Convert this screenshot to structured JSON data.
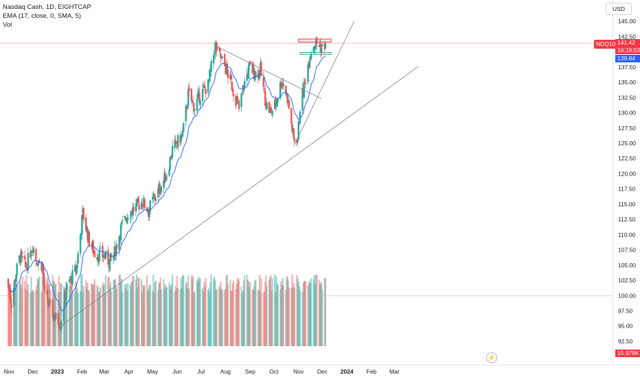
{
  "legend": {
    "symbol_line": "Nasdaq Cash, 1D, EIGHTCAP",
    "ema_line": "EMA (17, close, 0, SMA, 5)",
    "vol_line": "Vol"
  },
  "currency_label": "USD",
  "symbol_badge": "NDQ100",
  "last_price": "141.42",
  "countdown": "16:19:53",
  "second_price": "139.84",
  "volume_label": "15.978K",
  "colors": {
    "up": "#26a69a",
    "down": "#ef5350",
    "ema": "#2962ff",
    "trendline": "#787b86",
    "zone": "#f23645",
    "zone_fill": "#fde3e5",
    "green_zone": "#26a69a"
  },
  "chart_data": {
    "type": "candlestick",
    "title": "Nasdaq Cash, 1D, EIGHTCAP",
    "ylabel": "USD",
    "ylim": [
      90.5,
      146.5
    ],
    "y_ticks": [
      "145.00",
      "142.50",
      "137.50",
      "135.00",
      "132.50",
      "130.00",
      "127.50",
      "125.00",
      "122.50",
      "120.00",
      "117.50",
      "115.00",
      "112.50",
      "110.00",
      "107.50",
      "105.00",
      "102.50",
      "100.00",
      "97.50",
      "95.00",
      "92.50"
    ],
    "x_ticks": [
      "Nov",
      "Dec",
      "2023",
      "Feb",
      "Mar",
      "Apr",
      "May",
      "Jun",
      "Jul",
      "Aug",
      "Sep",
      "Oct",
      "Nov",
      "Dec",
      "2024",
      "Feb",
      "Mar"
    ],
    "anchor_closes": [
      [
        "2022-10-31",
        101.5
      ],
      [
        "2022-11-04",
        98.8
      ],
      [
        "2022-11-10",
        103.8
      ],
      [
        "2022-11-15",
        106.5
      ],
      [
        "2022-11-22",
        104.5
      ],
      [
        "2022-12-01",
        108.5
      ],
      [
        "2022-12-05",
        106.0
      ],
      [
        "2022-12-13",
        105.0
      ],
      [
        "2022-12-16",
        100.0
      ],
      [
        "2022-12-28",
        96.5
      ],
      [
        "2023-01-05",
        95.5
      ],
      [
        "2023-01-12",
        101.0
      ],
      [
        "2023-01-25",
        104.5
      ],
      [
        "2023-02-02",
        113.5
      ],
      [
        "2023-02-10",
        109.0
      ],
      [
        "2023-02-17",
        107.0
      ],
      [
        "2023-03-01",
        106.5
      ],
      [
        "2023-03-07",
        105.5
      ],
      [
        "2023-03-13",
        106.5
      ],
      [
        "2023-03-22",
        111.0
      ],
      [
        "2023-03-31",
        113.5
      ],
      [
        "2023-04-10",
        114.5
      ],
      [
        "2023-04-18",
        115.5
      ],
      [
        "2023-04-26",
        114.0
      ],
      [
        "2023-05-03",
        116.0
      ],
      [
        "2023-05-10",
        117.5
      ],
      [
        "2023-05-19",
        120.0
      ],
      [
        "2023-05-26",
        124.0
      ],
      [
        "2023-06-01",
        125.0
      ],
      [
        "2023-06-08",
        126.5
      ],
      [
        "2023-06-15",
        133.0
      ],
      [
        "2023-06-23",
        131.0
      ],
      [
        "2023-06-30",
        133.0
      ],
      [
        "2023-07-10",
        134.5
      ],
      [
        "2023-07-19",
        141.0
      ],
      [
        "2023-07-26",
        139.0
      ],
      [
        "2023-08-02",
        137.0
      ],
      [
        "2023-08-09",
        134.5
      ],
      [
        "2023-08-18",
        130.5
      ],
      [
        "2023-08-24",
        134.5
      ],
      [
        "2023-08-31",
        137.5
      ],
      [
        "2023-09-07",
        136.5
      ],
      [
        "2023-09-14",
        137.0
      ],
      [
        "2023-09-21",
        131.5
      ],
      [
        "2023-09-27",
        130.0
      ],
      [
        "2023-10-03",
        131.5
      ],
      [
        "2023-10-11",
        135.5
      ],
      [
        "2023-10-18",
        132.5
      ],
      [
        "2023-10-26",
        125.5
      ],
      [
        "2023-10-31",
        126.0
      ],
      [
        "2023-11-03",
        131.0
      ],
      [
        "2023-11-09",
        135.0
      ],
      [
        "2023-11-15",
        139.5
      ],
      [
        "2023-11-21",
        141.5
      ],
      [
        "2023-11-28",
        141.0
      ],
      [
        "2023-12-01",
        140.5
      ],
      [
        "2023-12-05",
        141.42
      ]
    ],
    "ema_period": 17,
    "horizontal_zones": [
      {
        "label": "resistance",
        "from": "2023-11-01",
        "to": "2023-12-12",
        "y_low": 141.6,
        "y_high": 142.1
      },
      {
        "label": "support",
        "from": "2023-11-03",
        "to": "2023-12-12",
        "y_low": 139.6,
        "y_high": 139.9
      }
    ],
    "horizontal_lines": [
      141.42,
      100.0
    ],
    "trendlines": [
      {
        "from": [
          "2023-07-19",
          141.0
        ],
        "to": [
          "2023-11-30",
          132.3
        ]
      },
      {
        "from": [
          "2023-01-05",
          95.0
        ],
        "to": [
          "2024-03-31",
          137.6
        ]
      },
      {
        "from": [
          "2023-10-26",
          124.5
        ],
        "to": [
          "2024-01-10",
          145.0
        ]
      }
    ]
  }
}
